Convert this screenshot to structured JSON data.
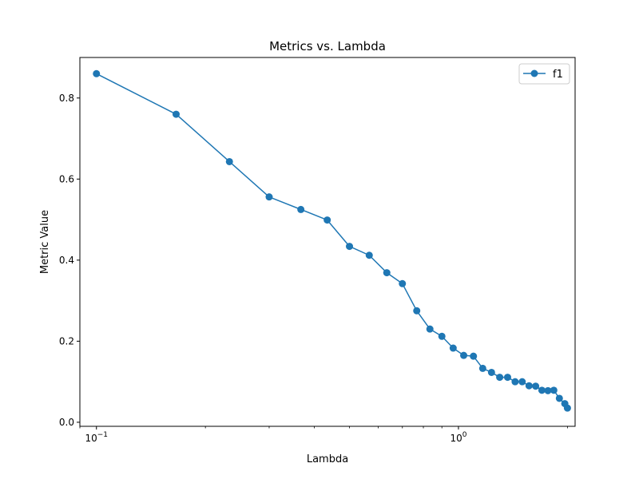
{
  "chart_data": {
    "type": "line",
    "title": "Metrics vs. Lambda",
    "xlabel": "Lambda",
    "ylabel": "Metric Value",
    "xscale": "log",
    "xlim": [
      0.09,
      2.1
    ],
    "ylim": [
      -0.01,
      0.9
    ],
    "grid": false,
    "legend_position": "top-right",
    "x_ticks": [
      {
        "value": 0.1,
        "label": "10",
        "exp": "−1"
      },
      {
        "value": 1,
        "label": "10",
        "exp": "0"
      }
    ],
    "y_ticks": [
      {
        "value": 0.0,
        "label": "0.0"
      },
      {
        "value": 0.2,
        "label": "0.2"
      },
      {
        "value": 0.4,
        "label": "0.4"
      },
      {
        "value": 0.6,
        "label": "0.6"
      },
      {
        "value": 0.8,
        "label": "0.8"
      }
    ],
    "series": [
      {
        "name": "f1",
        "color": "#1f77b4",
        "marker": "circle",
        "x": [
          0.1,
          0.166,
          0.233,
          0.3,
          0.367,
          0.434,
          0.5,
          0.567,
          0.634,
          0.7,
          0.767,
          0.834,
          0.9,
          0.967,
          1.034,
          1.1,
          1.167,
          1.234,
          1.3,
          1.367,
          1.434,
          1.5,
          1.567,
          1.634,
          1.7,
          1.767,
          1.834,
          1.9,
          1.967,
          2.0
        ],
        "y": [
          0.86,
          0.76,
          0.643,
          0.556,
          0.525,
          0.499,
          0.434,
          0.412,
          0.369,
          0.342,
          0.275,
          0.23,
          0.212,
          0.183,
          0.165,
          0.163,
          0.133,
          0.123,
          0.111,
          0.111,
          0.1,
          0.1,
          0.09,
          0.089,
          0.079,
          0.078,
          0.079,
          0.059,
          0.046,
          0.035
        ]
      }
    ]
  }
}
